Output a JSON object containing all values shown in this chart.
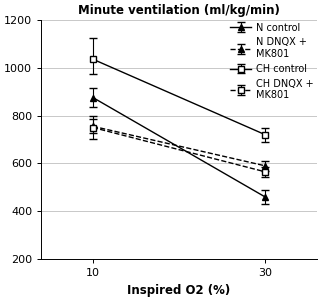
{
  "title": "Minute ventilation (ml/kg/min)",
  "xlabel": "Inspired O2 (%)",
  "x": [
    10,
    30
  ],
  "series": [
    {
      "label": "N control",
      "values": [
        875,
        460
      ],
      "yerr_lo": [
        40,
        30
      ],
      "yerr_hi": [
        40,
        30
      ],
      "color": "#000000",
      "linestyle": "solid",
      "marker": "^",
      "markerfacecolor": "#000000",
      "markersize": 5
    },
    {
      "label": "N DNQX +\nMK801",
      "values": [
        755,
        590
      ],
      "yerr_lo": [
        30,
        20
      ],
      "yerr_hi": [
        30,
        20
      ],
      "color": "#000000",
      "linestyle": "dashed",
      "marker": "^",
      "markerfacecolor": "#000000",
      "markersize": 5
    },
    {
      "label": "CH control",
      "values": [
        1035,
        720
      ],
      "yerr_lo": [
        60,
        30
      ],
      "yerr_hi": [
        90,
        30
      ],
      "color": "#000000",
      "linestyle": "solid",
      "marker": "s",
      "markerfacecolor": "#ffffff",
      "markersize": 5
    },
    {
      "label": "CH DNQX +\nMK801",
      "values": [
        750,
        565
      ],
      "yerr_lo": [
        50,
        20
      ],
      "yerr_hi": [
        50,
        20
      ],
      "color": "#000000",
      "linestyle": "dashed",
      "marker": "s",
      "markerfacecolor": "#ffffff",
      "markersize": 5
    }
  ],
  "ylim": [
    200,
    1200
  ],
  "yticks": [
    200,
    400,
    600,
    800,
    1000,
    1200
  ],
  "xticks": [
    10,
    30
  ],
  "background_color": "#ffffff",
  "grid_color": "#c8c8c8",
  "title_fontsize": 8.5,
  "label_fontsize": 8.5,
  "tick_fontsize": 8,
  "legend_fontsize": 7
}
